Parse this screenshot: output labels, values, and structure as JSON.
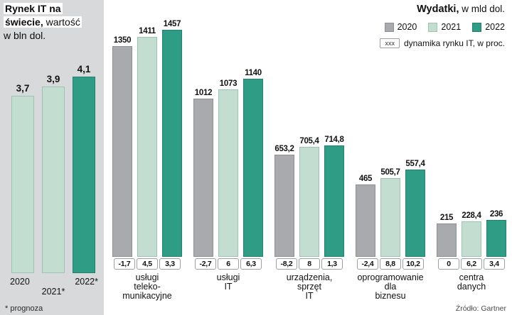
{
  "left_panel": {
    "title_line1": "Rynek IT na",
    "title_line2_bold": "świecie,",
    "title_line2_rest": " wartość",
    "title_line3": "w bln dol.",
    "year_left": "2020",
    "year_right": "2022*",
    "year_middle": "2021*",
    "footnote": "* prognoza"
  },
  "header": {
    "title_bold": "Wydatki,",
    "title_rest": " w mld dol."
  },
  "legend": {
    "items": [
      {
        "label": "2020",
        "color": "#a8aaad",
        "border": "#8e9093"
      },
      {
        "label": "2021",
        "color": "#c3ddd0",
        "border": "#9cc2b1"
      },
      {
        "label": "2022",
        "color": "#2f9c86",
        "border": "#23816f"
      }
    ],
    "dynamics_marker": "xxx",
    "dynamics_label": "dynamika rynku IT, w proc."
  },
  "source": "Źródło: Gartner",
  "chart_data": [
    {
      "type": "bar",
      "title": "Rynek IT na świecie, wartość w bln dol.",
      "categories": [
        "2020",
        "2021*",
        "2022*"
      ],
      "values": [
        3.7,
        3.9,
        4.1
      ],
      "value_labels": [
        "3,7",
        "3,9",
        "4,1"
      ],
      "colors": [
        "#c3ddd0",
        "#c3ddd0",
        "#2f9c86"
      ],
      "border_colors": [
        "#9cc2b1",
        "#9cc2b1",
        "#23816f"
      ],
      "note": "* prognoza",
      "ylim": [
        0,
        4.5
      ],
      "grid": false
    },
    {
      "type": "bar",
      "title": "Wydatki, w mld dol.",
      "categories": [
        "usługi\nteleko-\nmunikacyjne",
        "usługi\nIT",
        "urządzenia,\nsprzęt\nIT",
        "oprogramowanie\ndla\nbiznesu",
        "centra\ndanych"
      ],
      "series": [
        {
          "name": "2020",
          "color": "#a8aaad",
          "border": "#8e9093",
          "values": [
            1350,
            1012,
            653.2,
            465,
            215
          ],
          "value_labels": [
            "1350",
            "1012",
            "653,2",
            "465",
            "215"
          ]
        },
        {
          "name": "2021",
          "color": "#c3ddd0",
          "border": "#9cc2b1",
          "values": [
            1411,
            1073,
            705.4,
            505.7,
            228.4
          ],
          "value_labels": [
            "1411",
            "1073",
            "705,4",
            "505,7",
            "228,4"
          ]
        },
        {
          "name": "2022",
          "color": "#2f9c86",
          "border": "#23816f",
          "values": [
            1457,
            1140,
            714.8,
            557.4,
            236
          ],
          "value_labels": [
            "1457",
            "1140",
            "714,8",
            "557,4",
            "236"
          ]
        }
      ],
      "dynamics_pct": [
        [
          "-1,7",
          "4,5",
          "3,3"
        ],
        [
          "-2,7",
          "6",
          "6,3"
        ],
        [
          "-8,2",
          "8",
          "1,3"
        ],
        [
          "-2,4",
          "8,8",
          "10,2"
        ],
        [
          "0",
          "6,2",
          "3,4"
        ]
      ],
      "dynamics_legend": "xxx dynamika rynku IT, w proc.",
      "ylim": [
        0,
        1500
      ],
      "legend_position": "top-right",
      "grid": false,
      "source": "Źródło: Gartner"
    }
  ]
}
